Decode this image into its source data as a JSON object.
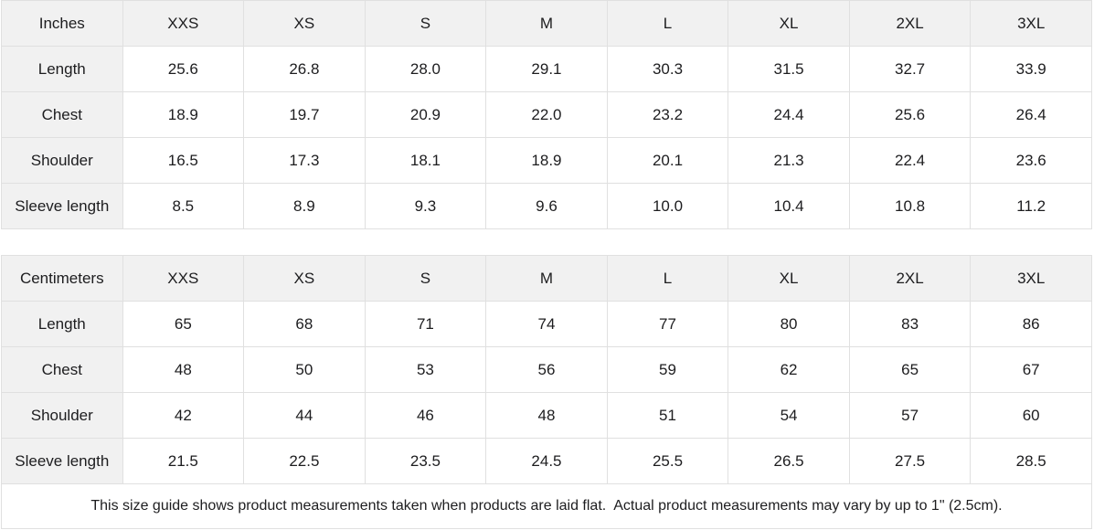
{
  "table": {
    "sizes": [
      "XXS",
      "XS",
      "S",
      "M",
      "L",
      "XL",
      "2XL",
      "3XL"
    ],
    "sections": [
      {
        "unit": "Inches",
        "rows": [
          {
            "label": "Length",
            "values": [
              "25.6",
              "26.8",
              "28.0",
              "29.1",
              "30.3",
              "31.5",
              "32.7",
              "33.9"
            ]
          },
          {
            "label": "Chest",
            "values": [
              "18.9",
              "19.7",
              "20.9",
              "22.0",
              "23.2",
              "24.4",
              "25.6",
              "26.4"
            ]
          },
          {
            "label": "Shoulder",
            "values": [
              "16.5",
              "17.3",
              "18.1",
              "18.9",
              "20.1",
              "21.3",
              "22.4",
              "23.6"
            ]
          },
          {
            "label": "Sleeve length",
            "values": [
              "8.5",
              "8.9",
              "9.3",
              "9.6",
              "10.0",
              "10.4",
              "10.8",
              "11.2"
            ]
          }
        ]
      },
      {
        "unit": "Centimeters",
        "rows": [
          {
            "label": "Length",
            "values": [
              "65",
              "68",
              "71",
              "74",
              "77",
              "80",
              "83",
              "86"
            ]
          },
          {
            "label": "Chest",
            "values": [
              "48",
              "50",
              "53",
              "56",
              "59",
              "62",
              "65",
              "67"
            ]
          },
          {
            "label": "Shoulder",
            "values": [
              "42",
              "44",
              "46",
              "48",
              "51",
              "54",
              "57",
              "60"
            ]
          },
          {
            "label": "Sleeve length",
            "values": [
              "21.5",
              "22.5",
              "23.5",
              "24.5",
              "25.5",
              "26.5",
              "27.5",
              "28.5"
            ]
          }
        ]
      }
    ]
  },
  "footer": {
    "note": "This size guide shows product measurements taken when products are laid flat.  Actual product measurements may vary by up to 1\" (2.5cm)."
  },
  "colors": {
    "header_bg": "#f1f1f1",
    "border": "#e0e0e0",
    "text": "#1d1d1f",
    "page_bg": "#ffffff"
  }
}
